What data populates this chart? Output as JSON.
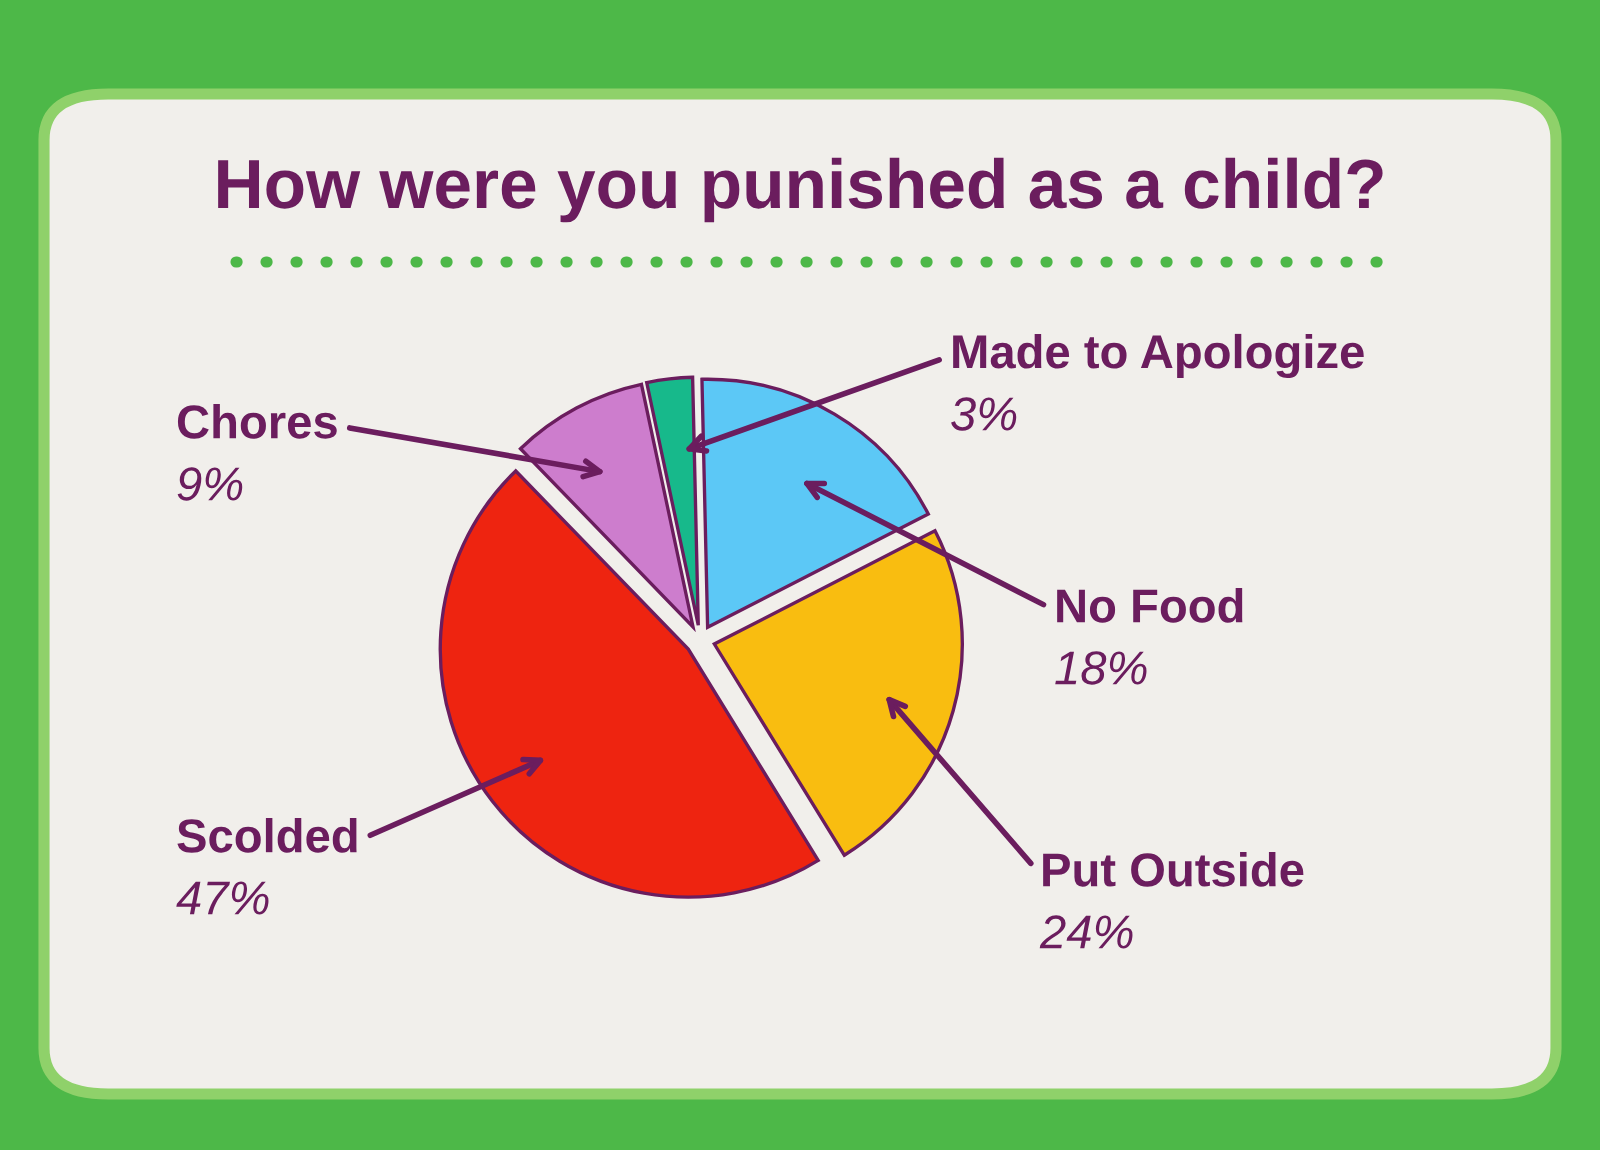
{
  "chart_data": {
    "type": "pie",
    "title": "How were you punished as a child?",
    "categories": [
      "Made to Apologize",
      "No Food",
      "Put Outside",
      "Scolded",
      "Chores"
    ],
    "values": [
      3,
      18,
      24,
      47,
      9
    ],
    "value_labels": [
      "3%",
      "18%",
      "24%",
      "47%",
      "9%"
    ],
    "colors": [
      "#17b98b",
      "#5cc8f6",
      "#f9bd10",
      "#ee2410",
      "#cd7dcd"
    ]
  }
}
